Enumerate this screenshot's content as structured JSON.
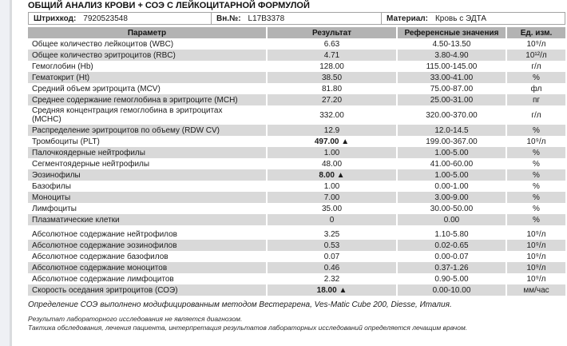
{
  "page": {
    "title": "ОБЩИЙ АНАЛИЗ КРОВИ + СОЭ С ЛЕЙКОЦИТАРНОЙ ФОРМУЛОЙ"
  },
  "info_bar": {
    "fields": [
      {
        "label": "Штрихкод:",
        "value": "7920523548"
      },
      {
        "label": "Вн.№:",
        "value": "L17B3378"
      },
      {
        "label": "Материал:",
        "value": "Кровь с ЭДТА"
      }
    ]
  },
  "table": {
    "columns": [
      "Параметр",
      "Результат",
      "Референсные значения",
      "Ед. изм."
    ],
    "flag_high_glyph": "▲",
    "rows": [
      {
        "param": "Общее количество лейкоцитов (WBC)",
        "result": "6.63",
        "ref": "4.50-13.50",
        "unit": "10⁹/л"
      },
      {
        "param": "Общее количество эритроцитов (RBC)",
        "result": "4.71",
        "ref": "3.80-4.90",
        "unit": "10¹²/л"
      },
      {
        "param": "Гемоглобин (Hb)",
        "result": "128.00",
        "ref": "115.00-145.00",
        "unit": "г/л"
      },
      {
        "param": "Гематокрит (Ht)",
        "result": "38.50",
        "ref": "33.00-41.00",
        "unit": "%"
      },
      {
        "param": "Средний объем эритроцита (MCV)",
        "result": "81.80",
        "ref": "75.00-87.00",
        "unit": "фл"
      },
      {
        "param": "Среднее содержание гемоглобина в эритроците (MCH)",
        "result": "27.20",
        "ref": "25.00-31.00",
        "unit": "пг"
      },
      {
        "param": "Средняя концентрация гемоглобина в эритроцитах\n(MCHC)",
        "result": "332.00",
        "ref": "320.00-370.00",
        "unit": "г/л"
      },
      {
        "param": "Распределение эритроцитов по объему (RDW CV)",
        "result": "12.9",
        "ref": "12.0-14.5",
        "unit": "%"
      },
      {
        "param": "Тромбоциты (PLT)",
        "result": "497.00",
        "flag_high": true,
        "ref": "199.00-367.00",
        "unit": "10⁹/л"
      },
      {
        "param": "Палочкоядерные нейтрофилы",
        "result": "1.00",
        "ref": "1.00-5.00",
        "unit": "%"
      },
      {
        "param": "Сегментоядерные нейтрофилы",
        "result": "48.00",
        "ref": "41.00-60.00",
        "unit": "%"
      },
      {
        "param": "Эозинофилы",
        "result": "8.00",
        "flag_high": true,
        "ref": "1.00-5.00",
        "unit": "%"
      },
      {
        "param": "Базофилы",
        "result": "1.00",
        "ref": "0.00-1.00",
        "unit": "%"
      },
      {
        "param": "Моноциты",
        "result": "7.00",
        "ref": "3.00-9.00",
        "unit": "%"
      },
      {
        "param": "Лимфоциты",
        "result": "35.00",
        "ref": "30.00-50.00",
        "unit": "%"
      },
      {
        "param": "Плазматические клетки",
        "result": "0",
        "ref": "0.00",
        "unit": "%"
      },
      {
        "param": "Абсолютное содержание нейтрофилов",
        "result": "3.25",
        "ref": "1.10-5.80",
        "unit": "10⁹/л",
        "gap_before": true
      },
      {
        "param": "Абсолютное содержание эозинофилов",
        "result": "0.53",
        "ref": "0.02-0.65",
        "unit": "10⁹/л"
      },
      {
        "param": "Абсолютное содержание базофилов",
        "result": "0.07",
        "ref": "0.00-0.07",
        "unit": "10⁹/л"
      },
      {
        "param": "Абсолютное содержание моноцитов",
        "result": "0.46",
        "ref": "0.37-1.26",
        "unit": "10⁹/л"
      },
      {
        "param": "Абсолютное содержание лимфоцитов",
        "result": "2.32",
        "ref": "0.90-5.00",
        "unit": "10⁹/л"
      },
      {
        "param": "Скорость оседания эритроцитов (СОЭ)",
        "result": "18.00",
        "flag_high": true,
        "ref": "0.00-10.00",
        "unit": "мм/час"
      }
    ]
  },
  "footnotes": {
    "method": "Определение СОЭ выполнено модифицированным методом Вестергрена, Ves-Matic Cube 200, Diesse, Италия.",
    "disclaimer1": "Результат лабораторного исследования не является диагнозом.",
    "disclaimer2": "Тактика обследования, лечения пациента, интерпретация результатов лабораторных исследований определяется лечащим врачом."
  },
  "colors": {
    "header_bg": "#b3b3b3",
    "stripe_bg": "#d9d9d9",
    "page_edge": "#d9dbde",
    "viewer_margin": "#eef0f4"
  }
}
